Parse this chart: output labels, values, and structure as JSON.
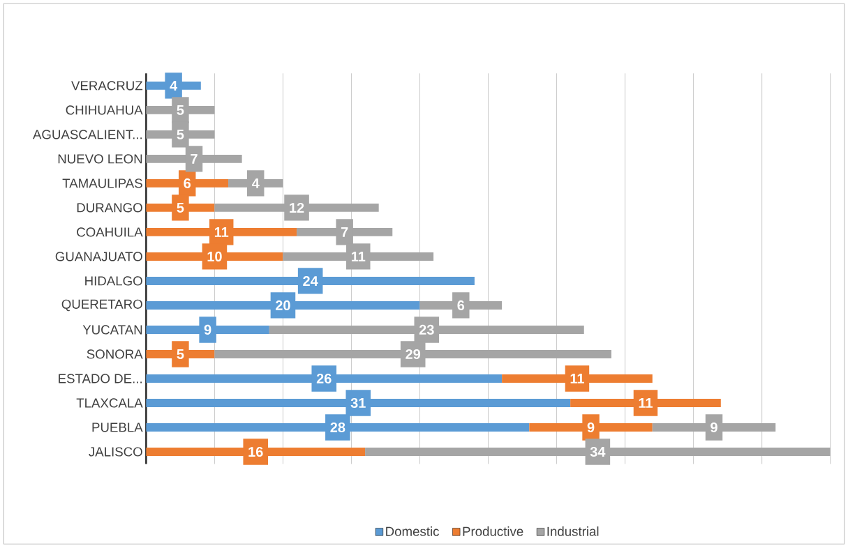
{
  "chart_data": {
    "type": "bar",
    "orientation": "horizontal",
    "stacked": true,
    "data_labels": true,
    "categories": [
      "VERACRUZ",
      "CHIHUAHUA",
      "AGUASCALIENT...",
      "NUEVO LEON",
      "TAMAULIPAS",
      "DURANGO",
      "COAHUILA",
      "GUANAJUATO",
      "HIDALGO",
      "QUERETARO",
      "YUCATAN",
      "SONORA",
      "ESTADO DE...",
      "TLAXCALA",
      "PUEBLA",
      "JALISCO"
    ],
    "series": [
      {
        "name": "Domestic",
        "color": "#5b9bd5",
        "values": [
          4,
          null,
          null,
          null,
          null,
          null,
          null,
          null,
          24,
          20,
          9,
          null,
          26,
          31,
          28,
          null
        ]
      },
      {
        "name": "Productive",
        "color": "#ed7d31",
        "values": [
          null,
          null,
          null,
          null,
          6,
          5,
          11,
          10,
          null,
          null,
          null,
          5,
          11,
          11,
          9,
          16
        ]
      },
      {
        "name": "Industrial",
        "color": "#a5a5a5",
        "values": [
          null,
          5,
          5,
          7,
          4,
          12,
          7,
          11,
          null,
          6,
          23,
          29,
          null,
          null,
          9,
          34
        ]
      }
    ],
    "xlim": [
      0,
      50
    ],
    "xticks": [
      {
        "value": 0,
        "label": null
      },
      {
        "value": 5,
        "label": null
      },
      {
        "value": 10,
        "label": null
      },
      {
        "value": 15,
        "label": null
      },
      {
        "value": 20,
        "label": null
      },
      {
        "value": 25,
        "label": null
      },
      {
        "value": 30,
        "label": null
      },
      {
        "value": 35,
        "label": null
      },
      {
        "value": 40,
        "label": null
      },
      {
        "value": 45,
        "label": null
      },
      {
        "value": 50,
        "label": null
      }
    ],
    "tick_labels": "y",
    "grid": "x",
    "legend": "bottom"
  }
}
